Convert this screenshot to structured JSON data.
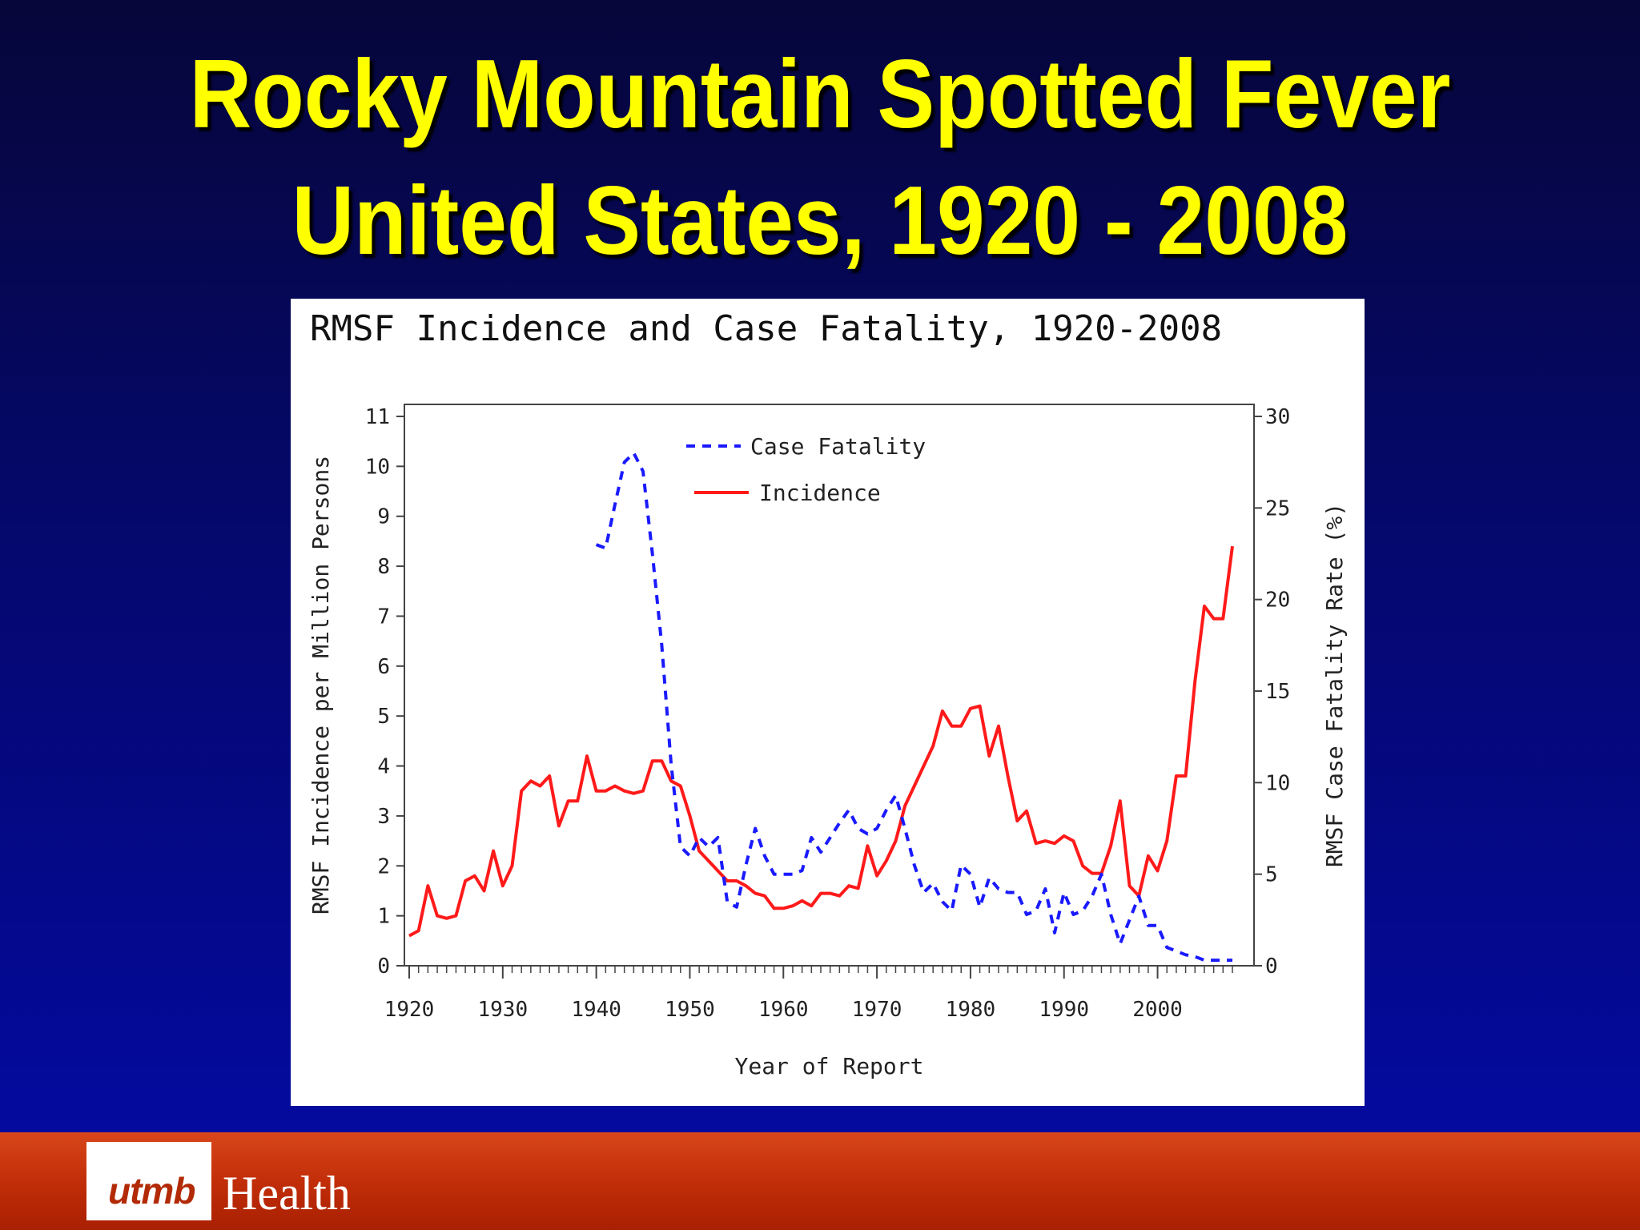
{
  "slide": {
    "title_line1": "Rocky Mountain Spotted Fever",
    "title_line2": "United States, 1920 - 2008"
  },
  "footer": {
    "logo_utmb": "utmb",
    "logo_health": "Health"
  },
  "colors": {
    "title": "#ffff00",
    "incidence": "#ff1a1a",
    "case_fatality": "#1a1aff",
    "footer": "#c42f0a"
  },
  "chart_data": {
    "type": "line",
    "title": "RMSF Incidence and Case Fatality, 1920-2008",
    "xlabel": "Year of Report",
    "ylabel": "RMSF Incidence per Million Persons",
    "y2label": "RMSF Case Fatality Rate (%)",
    "xlim": [
      1920,
      2008
    ],
    "ylim": [
      0,
      11
    ],
    "y2lim": [
      0,
      30
    ],
    "x_ticks": [
      1920,
      1930,
      1940,
      1950,
      1960,
      1970,
      1980,
      1990,
      2000
    ],
    "y_ticks": [
      0,
      1,
      2,
      3,
      4,
      5,
      6,
      7,
      8,
      9,
      10,
      11
    ],
    "y2_ticks": [
      0,
      5,
      10,
      15,
      20,
      25,
      30
    ],
    "legend": {
      "position": "top-center",
      "entries": [
        "Case Fatality",
        "Incidence"
      ]
    },
    "series": [
      {
        "name": "Incidence",
        "axis": "left",
        "style": "solid",
        "x": [
          1920,
          1921,
          1922,
          1923,
          1924,
          1925,
          1926,
          1927,
          1928,
          1929,
          1930,
          1931,
          1932,
          1933,
          1934,
          1935,
          1936,
          1937,
          1938,
          1939,
          1940,
          1941,
          1942,
          1943,
          1944,
          1945,
          1946,
          1947,
          1948,
          1949,
          1950,
          1951,
          1952,
          1953,
          1954,
          1955,
          1956,
          1957,
          1958,
          1959,
          1960,
          1961,
          1962,
          1963,
          1964,
          1965,
          1966,
          1967,
          1968,
          1969,
          1970,
          1971,
          1972,
          1973,
          1974,
          1975,
          1976,
          1977,
          1978,
          1979,
          1980,
          1981,
          1982,
          1983,
          1984,
          1985,
          1986,
          1987,
          1988,
          1989,
          1990,
          1991,
          1992,
          1993,
          1994,
          1995,
          1996,
          1997,
          1998,
          1999,
          2000,
          2001,
          2002,
          2003,
          2004,
          2005,
          2006,
          2007,
          2008
        ],
        "values": [
          0.6,
          0.7,
          1.6,
          1.0,
          0.95,
          1.0,
          1.7,
          1.8,
          1.5,
          2.3,
          1.6,
          2.0,
          3.5,
          3.7,
          3.6,
          3.8,
          2.8,
          3.3,
          3.3,
          4.2,
          3.5,
          3.5,
          3.6,
          3.5,
          3.45,
          3.5,
          4.1,
          4.1,
          3.7,
          3.6,
          3.0,
          2.3,
          2.1,
          1.9,
          1.7,
          1.7,
          1.6,
          1.45,
          1.4,
          1.15,
          1.15,
          1.2,
          1.3,
          1.2,
          1.45,
          1.45,
          1.4,
          1.6,
          1.55,
          2.4,
          1.8,
          2.1,
          2.5,
          3.2,
          3.6,
          4.0,
          4.4,
          5.1,
          4.8,
          4.8,
          5.15,
          5.2,
          4.2,
          4.8,
          3.8,
          2.9,
          3.1,
          2.45,
          2.5,
          2.45,
          2.6,
          2.5,
          2.0,
          1.85,
          1.85,
          2.4,
          3.3,
          1.6,
          1.4,
          2.2,
          1.9,
          2.5,
          3.8,
          3.8,
          5.7,
          7.2,
          6.95,
          6.95,
          8.4
        ]
      },
      {
        "name": "Case Fatality",
        "axis": "right",
        "style": "dashed",
        "x": [
          1940,
          1941,
          1942,
          1943,
          1944,
          1945,
          1946,
          1947,
          1948,
          1949,
          1950,
          1951,
          1952,
          1953,
          1954,
          1955,
          1956,
          1957,
          1958,
          1959,
          1960,
          1961,
          1962,
          1963,
          1964,
          1965,
          1966,
          1967,
          1968,
          1969,
          1970,
          1971,
          1972,
          1973,
          1974,
          1975,
          1976,
          1977,
          1978,
          1979,
          1980,
          1981,
          1982,
          1983,
          1984,
          1985,
          1986,
          1987,
          1988,
          1989,
          1990,
          1991,
          1992,
          1993,
          1994,
          1995,
          1996,
          1997,
          1998,
          1999,
          2000,
          2001,
          2002,
          2003,
          2004,
          2005,
          2006,
          2007,
          2008
        ],
        "values": [
          23.0,
          22.8,
          25.2,
          27.5,
          28.0,
          27.0,
          22.5,
          17.5,
          11.0,
          6.5,
          6.0,
          7.0,
          6.5,
          7.0,
          3.5,
          3.2,
          5.5,
          7.5,
          6.0,
          5.0,
          5.0,
          5.0,
          5.2,
          7.0,
          6.2,
          7.0,
          7.8,
          8.5,
          7.5,
          7.2,
          7.5,
          8.5,
          9.3,
          7.5,
          5.5,
          4.0,
          4.5,
          3.5,
          3.0,
          5.5,
          5.0,
          3.2,
          4.8,
          4.2,
          4.0,
          4.0,
          2.8,
          3.0,
          4.2,
          1.8,
          4.0,
          2.8,
          3.0,
          3.8,
          5.0,
          2.8,
          1.2,
          2.5,
          3.8,
          2.2,
          2.2,
          1.0,
          0.8,
          0.6,
          0.5,
          0.3,
          0.3,
          0.3,
          0.3
        ]
      }
    ]
  }
}
